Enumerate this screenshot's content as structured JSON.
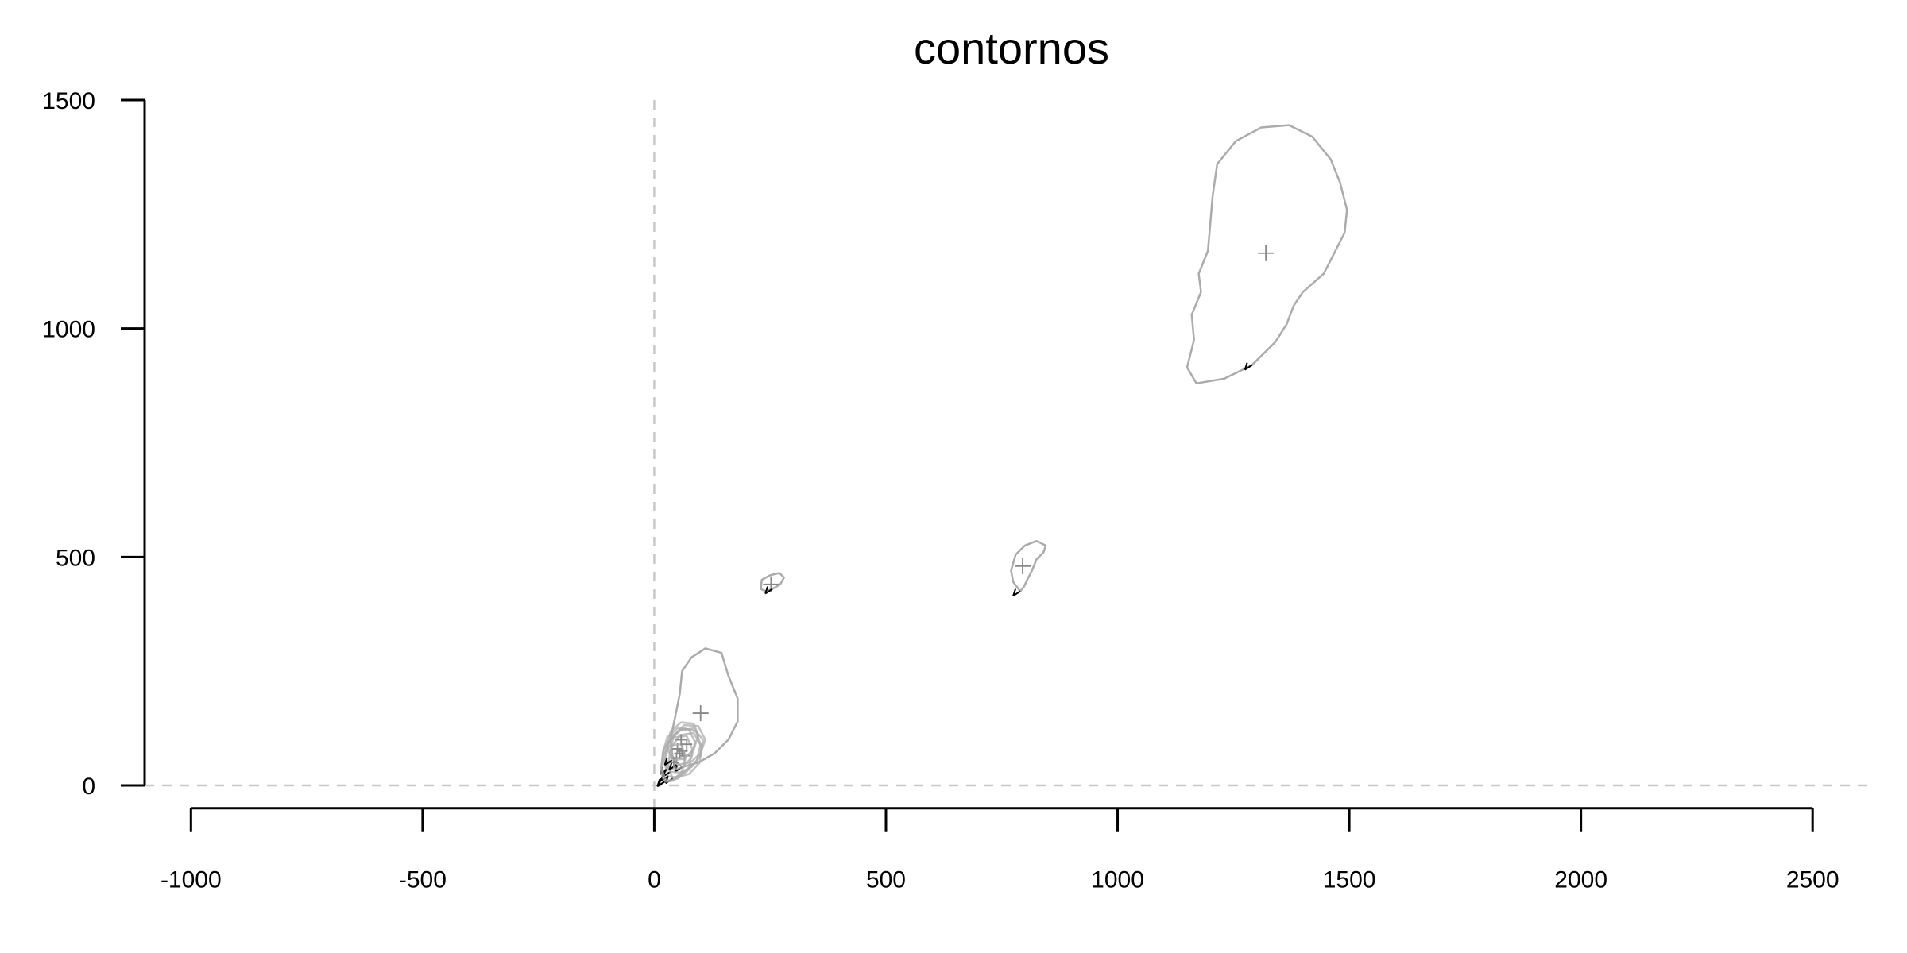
{
  "chart_data": {
    "type": "line",
    "title": "contornos",
    "xlabel": "",
    "ylabel": "",
    "xlim": [
      -1100,
      2630
    ],
    "ylim": [
      -80,
      1500
    ],
    "x_ticks": [
      -1000,
      -500,
      0,
      500,
      1000,
      1500,
      2000,
      2500
    ],
    "y_ticks": [
      0,
      500,
      1000,
      1500
    ],
    "x_axis_y": -50,
    "y_axis_x": -1100,
    "reference_lines": {
      "x": 0,
      "y": 0
    },
    "grid": false,
    "legend": "none",
    "colors": {
      "contour": "#ababab",
      "centroid": "#888888",
      "start_mark": "#000000",
      "reference": "#c8c8c8",
      "cluster": "#4a4a4a"
    },
    "series": [
      {
        "centroid": [
          1320,
          1165
        ],
        "points": [
          [
            1290,
            920
          ],
          [
            1230,
            890
          ],
          [
            1170,
            880
          ],
          [
            1150,
            915
          ],
          [
            1165,
            975
          ],
          [
            1160,
            1030
          ],
          [
            1180,
            1080
          ],
          [
            1175,
            1120
          ],
          [
            1195,
            1170
          ],
          [
            1200,
            1230
          ],
          [
            1205,
            1290
          ],
          [
            1215,
            1360
          ],
          [
            1255,
            1410
          ],
          [
            1310,
            1440
          ],
          [
            1370,
            1445
          ],
          [
            1420,
            1420
          ],
          [
            1460,
            1370
          ],
          [
            1480,
            1320
          ],
          [
            1495,
            1260
          ],
          [
            1490,
            1210
          ],
          [
            1470,
            1170
          ],
          [
            1445,
            1120
          ],
          [
            1400,
            1080
          ],
          [
            1380,
            1050
          ],
          [
            1365,
            1010
          ],
          [
            1340,
            970
          ],
          [
            1310,
            940
          ],
          [
            1290,
            920
          ]
        ]
      },
      {
        "centroid": [
          795,
          480
        ],
        "points": [
          [
            790,
            425
          ],
          [
            775,
            445
          ],
          [
            770,
            470
          ],
          [
            780,
            505
          ],
          [
            800,
            525
          ],
          [
            825,
            535
          ],
          [
            845,
            525
          ],
          [
            840,
            510
          ],
          [
            825,
            495
          ],
          [
            815,
            470
          ],
          [
            805,
            450
          ],
          [
            798,
            435
          ],
          [
            790,
            425
          ]
        ]
      },
      {
        "centroid": [
          252,
          440
        ],
        "points": [
          [
            255,
            430
          ],
          [
            240,
            425
          ],
          [
            230,
            430
          ],
          [
            232,
            450
          ],
          [
            250,
            460
          ],
          [
            270,
            465
          ],
          [
            280,
            455
          ],
          [
            272,
            440
          ],
          [
            255,
            430
          ]
        ]
      },
      {
        "centroid": [
          100,
          158
        ],
        "points": [
          [
            60,
            40
          ],
          [
            40,
            60
          ],
          [
            35,
            100
          ],
          [
            45,
            150
          ],
          [
            55,
            200
          ],
          [
            60,
            250
          ],
          [
            80,
            280
          ],
          [
            110,
            300
          ],
          [
            145,
            290
          ],
          [
            160,
            240
          ],
          [
            180,
            190
          ],
          [
            180,
            140
          ],
          [
            160,
            100
          ],
          [
            130,
            70
          ],
          [
            95,
            50
          ],
          [
            60,
            40
          ]
        ]
      },
      {
        "centroid": [
          55,
          70
        ],
        "points": [
          [
            30,
            20
          ],
          [
            22,
            50
          ],
          [
            25,
            85
          ],
          [
            40,
            110
          ],
          [
            65,
            125
          ],
          [
            90,
            118
          ],
          [
            100,
            90
          ],
          [
            92,
            55
          ],
          [
            70,
            30
          ],
          [
            45,
            18
          ],
          [
            30,
            20
          ]
        ]
      },
      {
        "centroid": [
          60,
          75
        ],
        "points": [
          [
            35,
            30
          ],
          [
            25,
            60
          ],
          [
            32,
            95
          ],
          [
            55,
            120
          ],
          [
            85,
            125
          ],
          [
            105,
            100
          ],
          [
            100,
            65
          ],
          [
            80,
            40
          ],
          [
            55,
            28
          ],
          [
            35,
            30
          ]
        ]
      },
      {
        "centroid": [
          50,
          80
        ],
        "points": [
          [
            28,
            35
          ],
          [
            18,
            70
          ],
          [
            28,
            105
          ],
          [
            50,
            125
          ],
          [
            75,
            122
          ],
          [
            88,
            95
          ],
          [
            80,
            60
          ],
          [
            58,
            38
          ],
          [
            28,
            35
          ]
        ]
      },
      {
        "centroid": [
          65,
          65
        ],
        "points": [
          [
            40,
            15
          ],
          [
            30,
            40
          ],
          [
            35,
            80
          ],
          [
            55,
            110
          ],
          [
            85,
            115
          ],
          [
            102,
            85
          ],
          [
            98,
            50
          ],
          [
            75,
            25
          ],
          [
            40,
            15
          ]
        ]
      },
      {
        "centroid": [
          48,
          60
        ],
        "points": [
          [
            25,
            10
          ],
          [
            15,
            40
          ],
          [
            20,
            80
          ],
          [
            40,
            105
          ],
          [
            70,
            108
          ],
          [
            82,
            80
          ],
          [
            75,
            40
          ],
          [
            52,
            15
          ],
          [
            25,
            10
          ]
        ]
      },
      {
        "centroid": [
          70,
          90
        ],
        "points": [
          [
            48,
            45
          ],
          [
            35,
            75
          ],
          [
            42,
            110
          ],
          [
            65,
            132
          ],
          [
            95,
            130
          ],
          [
            110,
            100
          ],
          [
            100,
            70
          ],
          [
            78,
            50
          ],
          [
            48,
            45
          ]
        ]
      },
      {
        "centroid": [
          42,
          50
        ],
        "points": [
          [
            22,
            8
          ],
          [
            14,
            30
          ],
          [
            18,
            65
          ],
          [
            35,
            88
          ],
          [
            58,
            90
          ],
          [
            68,
            62
          ],
          [
            60,
            30
          ],
          [
            40,
            10
          ],
          [
            22,
            8
          ]
        ]
      },
      {
        "centroid": [
          58,
          100
        ],
        "points": [
          [
            38,
            55
          ],
          [
            28,
            85
          ],
          [
            35,
            118
          ],
          [
            58,
            138
          ],
          [
            85,
            135
          ],
          [
            95,
            110
          ],
          [
            85,
            78
          ],
          [
            62,
            58
          ],
          [
            38,
            55
          ]
        ]
      }
    ]
  }
}
